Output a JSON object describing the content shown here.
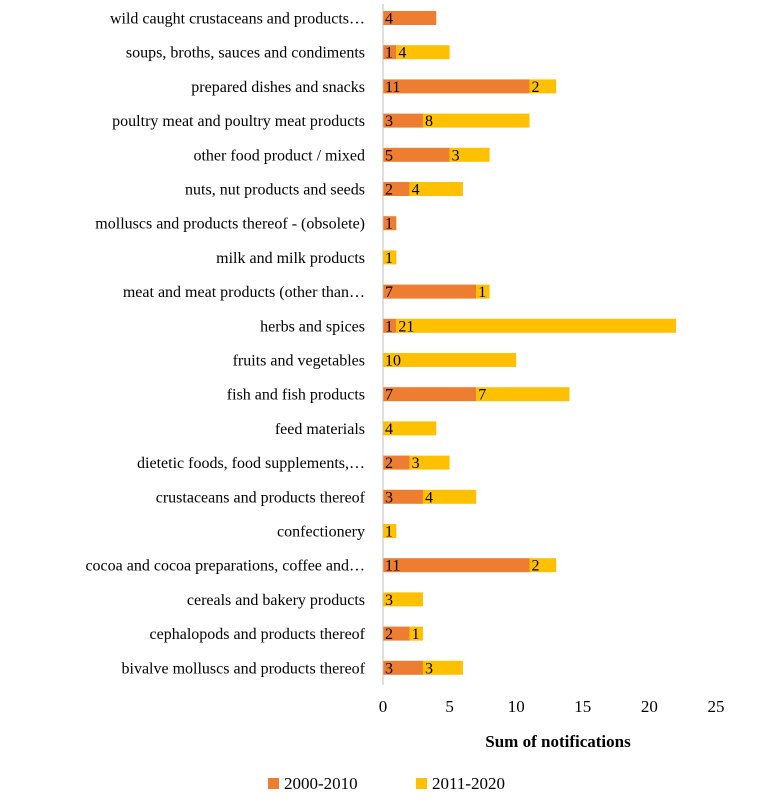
{
  "chart_data": {
    "type": "bar",
    "orientation": "horizontal",
    "stacked": true,
    "categories": [
      "wild caught crustaceans and products…",
      "soups, broths, sauces and condiments",
      "prepared dishes and snacks",
      "poultry meat and poultry meat products",
      "other food product / mixed",
      "nuts, nut products and seeds",
      "molluscs and products thereof - (obsolete)",
      "milk and milk products",
      "meat and meat products (other than…",
      "herbs and spices",
      "fruits and vegetables",
      "fish and fish products",
      "feed materials",
      "dietetic foods, food supplements,…",
      "crustaceans and products thereof",
      "confectionery",
      "cocoa and cocoa preparations, coffee and…",
      "cereals and bakery products",
      "cephalopods and products thereof",
      "bivalve molluscs and products thereof"
    ],
    "series": [
      {
        "name": "2000-2010",
        "color": "#ED7D31",
        "values": [
          4,
          1,
          11,
          3,
          5,
          2,
          1,
          0,
          7,
          1,
          0,
          7,
          0,
          2,
          3,
          0,
          11,
          0,
          2,
          3
        ]
      },
      {
        "name": "2011-2020",
        "color": "#FFC000",
        "values": [
          0,
          4,
          2,
          8,
          3,
          4,
          0,
          1,
          1,
          21,
          10,
          7,
          4,
          3,
          4,
          1,
          2,
          3,
          1,
          3
        ]
      }
    ],
    "xlabel": "Sum of notifications",
    "ylabel": "",
    "title": "",
    "xlim": [
      0,
      25
    ],
    "xticks": [
      "0",
      "5",
      "10",
      "15",
      "20",
      "25"
    ],
    "grid": false,
    "legend_position": "bottom"
  }
}
